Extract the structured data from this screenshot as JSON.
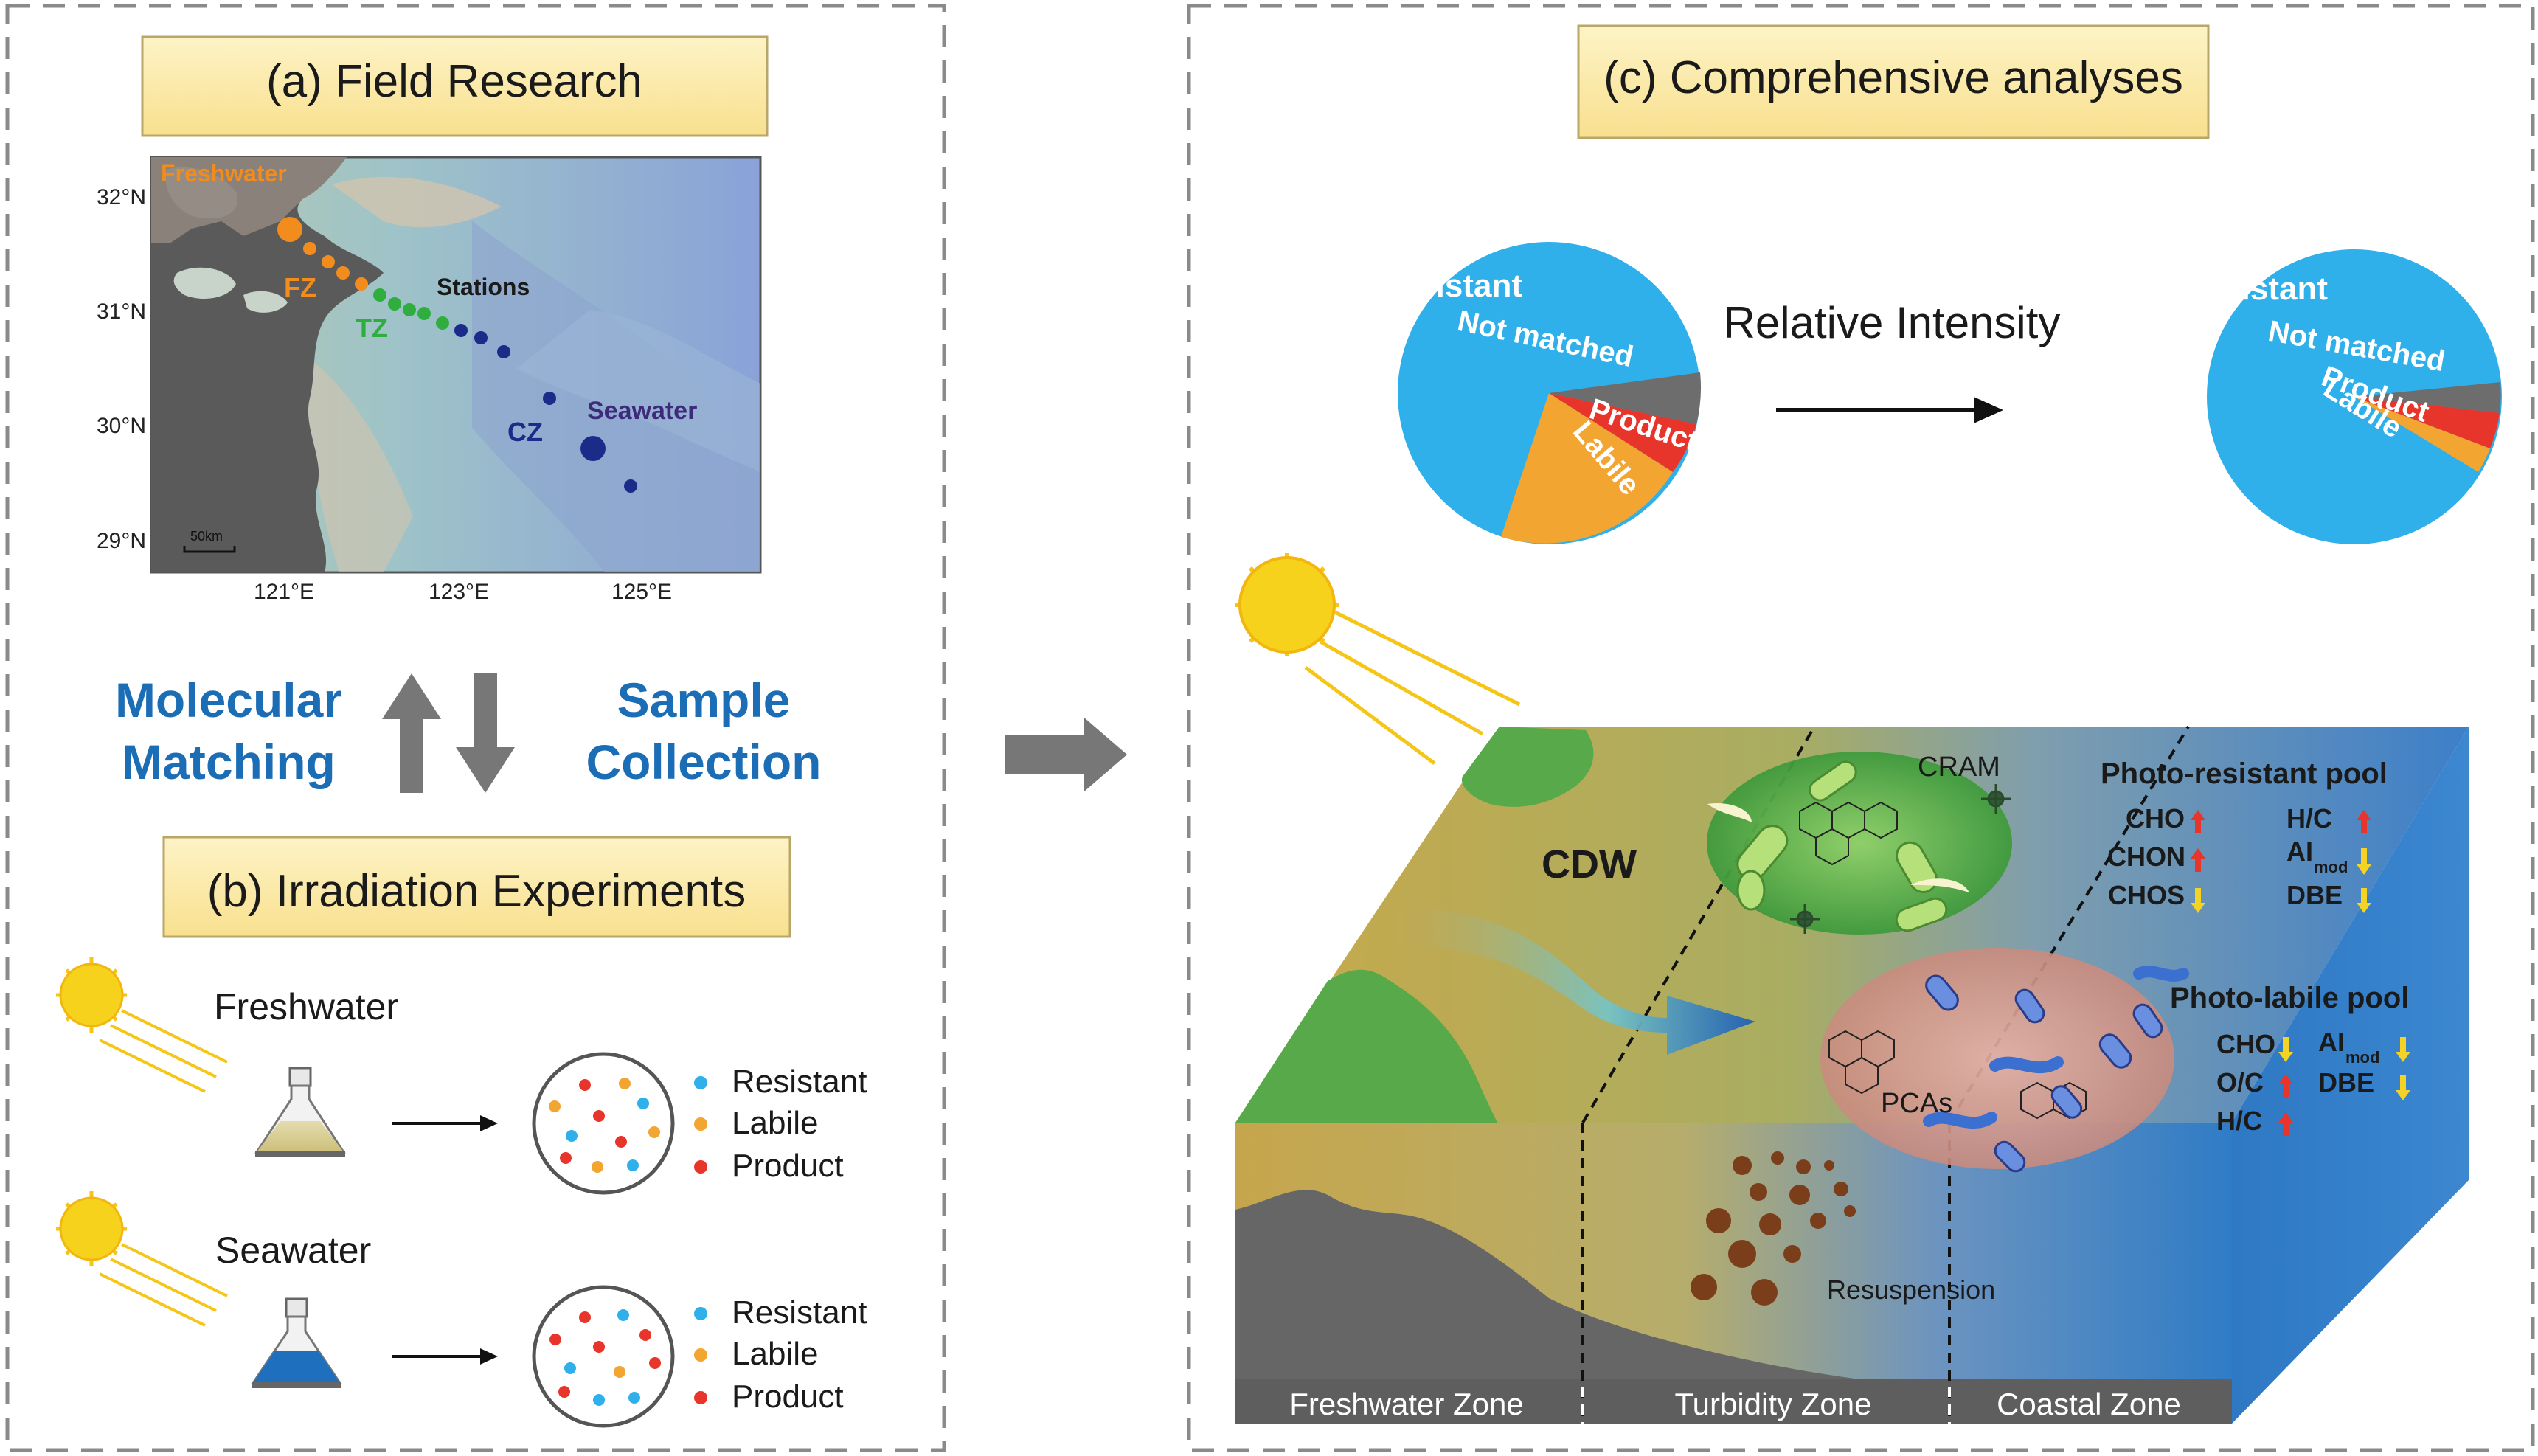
{
  "panel_a": {
    "title": "(a) Field Research",
    "map": {
      "lat_labels": [
        "32°N",
        "31°N",
        "30°N",
        "29°N"
      ],
      "lon_labels": [
        "121°E",
        "123°E",
        "125°E"
      ],
      "label_freshwater": "Freshwater",
      "label_fz": "FZ",
      "label_tz": "TZ",
      "label_stations": "Stations",
      "label_cz": "CZ",
      "label_seawater": "Seawater",
      "scale_bar": "50km"
    },
    "arrow_left_label_1": "Molecular",
    "arrow_left_label_2": "Matching",
    "arrow_right_label_1": "Sample",
    "arrow_right_label_2": "Collection"
  },
  "panel_b": {
    "title": "(b) Irradiation Experiments",
    "experiment_1": "Freshwater",
    "experiment_2": "Seawater",
    "legend": [
      "Resistant",
      "Labile",
      "Product"
    ]
  },
  "panel_c": {
    "title": "(c) Comprehensive analyses",
    "relative_intensity": "Relative Intensity",
    "pie_labels": {
      "resistant": "Resistant",
      "not_matched": "Not matched",
      "product": "Product",
      "labile": "Labile"
    },
    "scene": {
      "cdw": "CDW",
      "cram": "CRAM",
      "pcas": "PCAs",
      "resuspension": "Resuspension",
      "zones": [
        "Freshwater Zone",
        "Turbidity Zone",
        "Coastal Zone"
      ],
      "resistant_pool": {
        "title": "Photo-resistant pool",
        "items": [
          "CHO",
          "CHON",
          "CHOS",
          "H/C",
          "AI",
          "mod",
          "DBE"
        ]
      },
      "labile_pool": {
        "title": "Photo-labile pool",
        "items": [
          "CHO",
          "O/C",
          "H/C",
          "AI",
          "mod",
          "DBE"
        ]
      }
    }
  },
  "colors": {
    "resistant": "#2fb0ea",
    "labile": "#f2a531",
    "product": "#e8352b",
    "not_matched": "#6d6d6d",
    "title_box": "#fbe9a8",
    "accent_blue": "#1b6db5",
    "fz_orange": "#f28c1c",
    "tz_green": "#2fae3f",
    "cz_navy": "#1c2a8a",
    "up_arrow": "#e8352b",
    "down_arrow": "#f5d324"
  }
}
